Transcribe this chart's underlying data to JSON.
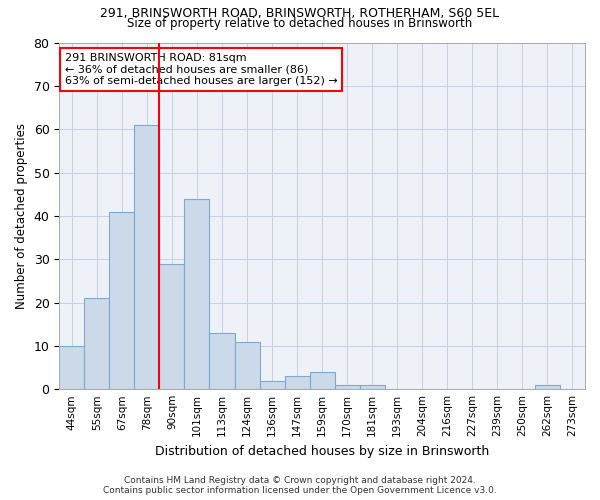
{
  "title1": "291, BRINSWORTH ROAD, BRINSWORTH, ROTHERHAM, S60 5EL",
  "title2": "Size of property relative to detached houses in Brinsworth",
  "xlabel": "Distribution of detached houses by size in Brinsworth",
  "ylabel": "Number of detached properties",
  "categories": [
    "44sqm",
    "55sqm",
    "67sqm",
    "78sqm",
    "90sqm",
    "101sqm",
    "113sqm",
    "124sqm",
    "136sqm",
    "147sqm",
    "159sqm",
    "170sqm",
    "181sqm",
    "193sqm",
    "204sqm",
    "216sqm",
    "227sqm",
    "239sqm",
    "250sqm",
    "262sqm",
    "273sqm"
  ],
  "values": [
    10,
    21,
    41,
    61,
    29,
    44,
    13,
    11,
    2,
    3,
    4,
    1,
    1,
    0,
    0,
    0,
    0,
    0,
    0,
    1,
    0
  ],
  "bar_color": "#ccd9e8",
  "bar_edge_color": "#7aaace",
  "red_line_x": 3.5,
  "annotation_title": "291 BRINSWORTH ROAD: 81sqm",
  "annotation_line1": "← 36% of detached houses are smaller (86)",
  "annotation_line2": "63% of semi-detached houses are larger (152) →",
  "ylim": [
    0,
    80
  ],
  "yticks": [
    0,
    10,
    20,
    30,
    40,
    50,
    60,
    70,
    80
  ],
  "footer1": "Contains HM Land Registry data © Crown copyright and database right 2024.",
  "footer2": "Contains public sector information licensed under the Open Government Licence v3.0.",
  "background_color": "#eef2f8",
  "grid_color": "#c8cfe0"
}
